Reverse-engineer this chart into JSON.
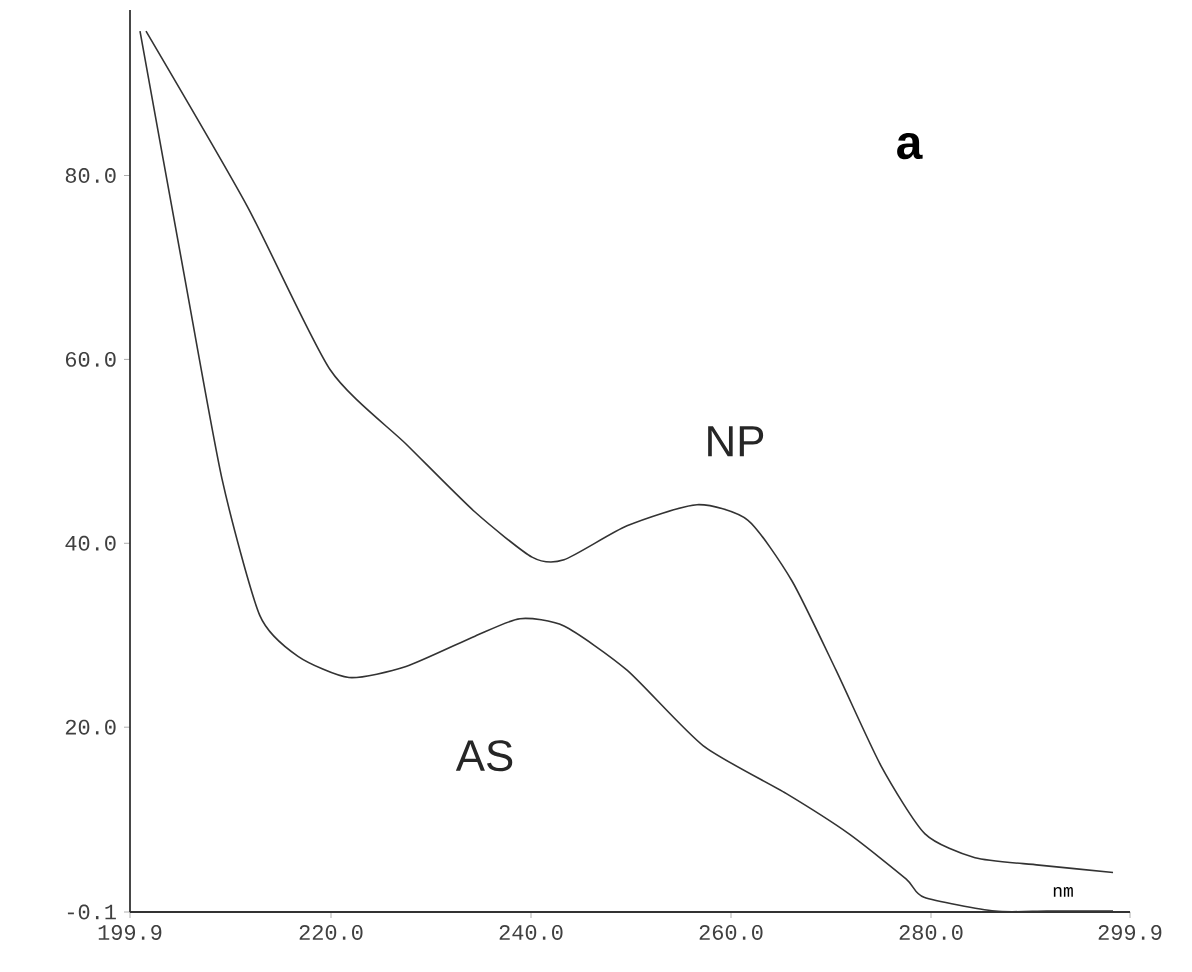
{
  "chart_data": {
    "type": "line",
    "title": "a",
    "xlabel": "nm",
    "xlim": [
      199.9,
      299.9
    ],
    "ylim": [
      -0.1,
      98
    ],
    "xticks": [
      199.9,
      {
        "value": 220,
        "label": "220.0"
      },
      {
        "value": 240,
        "label": "240.0"
      },
      {
        "value": 260,
        "label": "260.0"
      },
      {
        "value": 280,
        "label": "280.0"
      },
      299.9
    ],
    "yticks": [
      -0.1,
      {
        "value": 20,
        "label": "20.0"
      },
      {
        "value": 40,
        "label": "40.0"
      },
      {
        "value": 60,
        "label": "60.0"
      },
      {
        "value": 80,
        "label": "80.0"
      }
    ],
    "grid": false,
    "marker": "none",
    "line_style": "solid",
    "series": [
      {
        "name": "NP",
        "color": "#333333",
        "x": [
          201.5,
          211.6,
          219.9,
          227.5,
          234.4,
          240.1,
          243.3,
          249.6,
          256.6,
          261.7,
          266.1,
          270.5,
          275.0,
          279.4,
          284.4,
          290.8,
          298.2
        ],
        "values": [
          95.7,
          76.7,
          58.9,
          50.8,
          43.4,
          38.5,
          38.2,
          41.9,
          44.2,
          42.5,
          35.9,
          26.2,
          15.8,
          8.4,
          5.8,
          5.0,
          4.2
        ]
      },
      {
        "name": "AS",
        "color": "#333333",
        "x": [
          200.9,
          205.3,
          209.1,
          212.9,
          216.7,
          221.8,
          227.5,
          234.4,
          238.9,
          243.3,
          249.6,
          257.2,
          265.5,
          271.8,
          277.5,
          279.3,
          286.4,
          291.6,
          298.2
        ],
        "values": [
          95.7,
          69.3,
          47.0,
          32.1,
          27.7,
          25.4,
          26.6,
          29.9,
          31.8,
          31.0,
          26.2,
          18.0,
          12.8,
          8.4,
          3.5,
          1.5,
          0.0,
          0.0,
          0.0
        ]
      }
    ]
  }
}
